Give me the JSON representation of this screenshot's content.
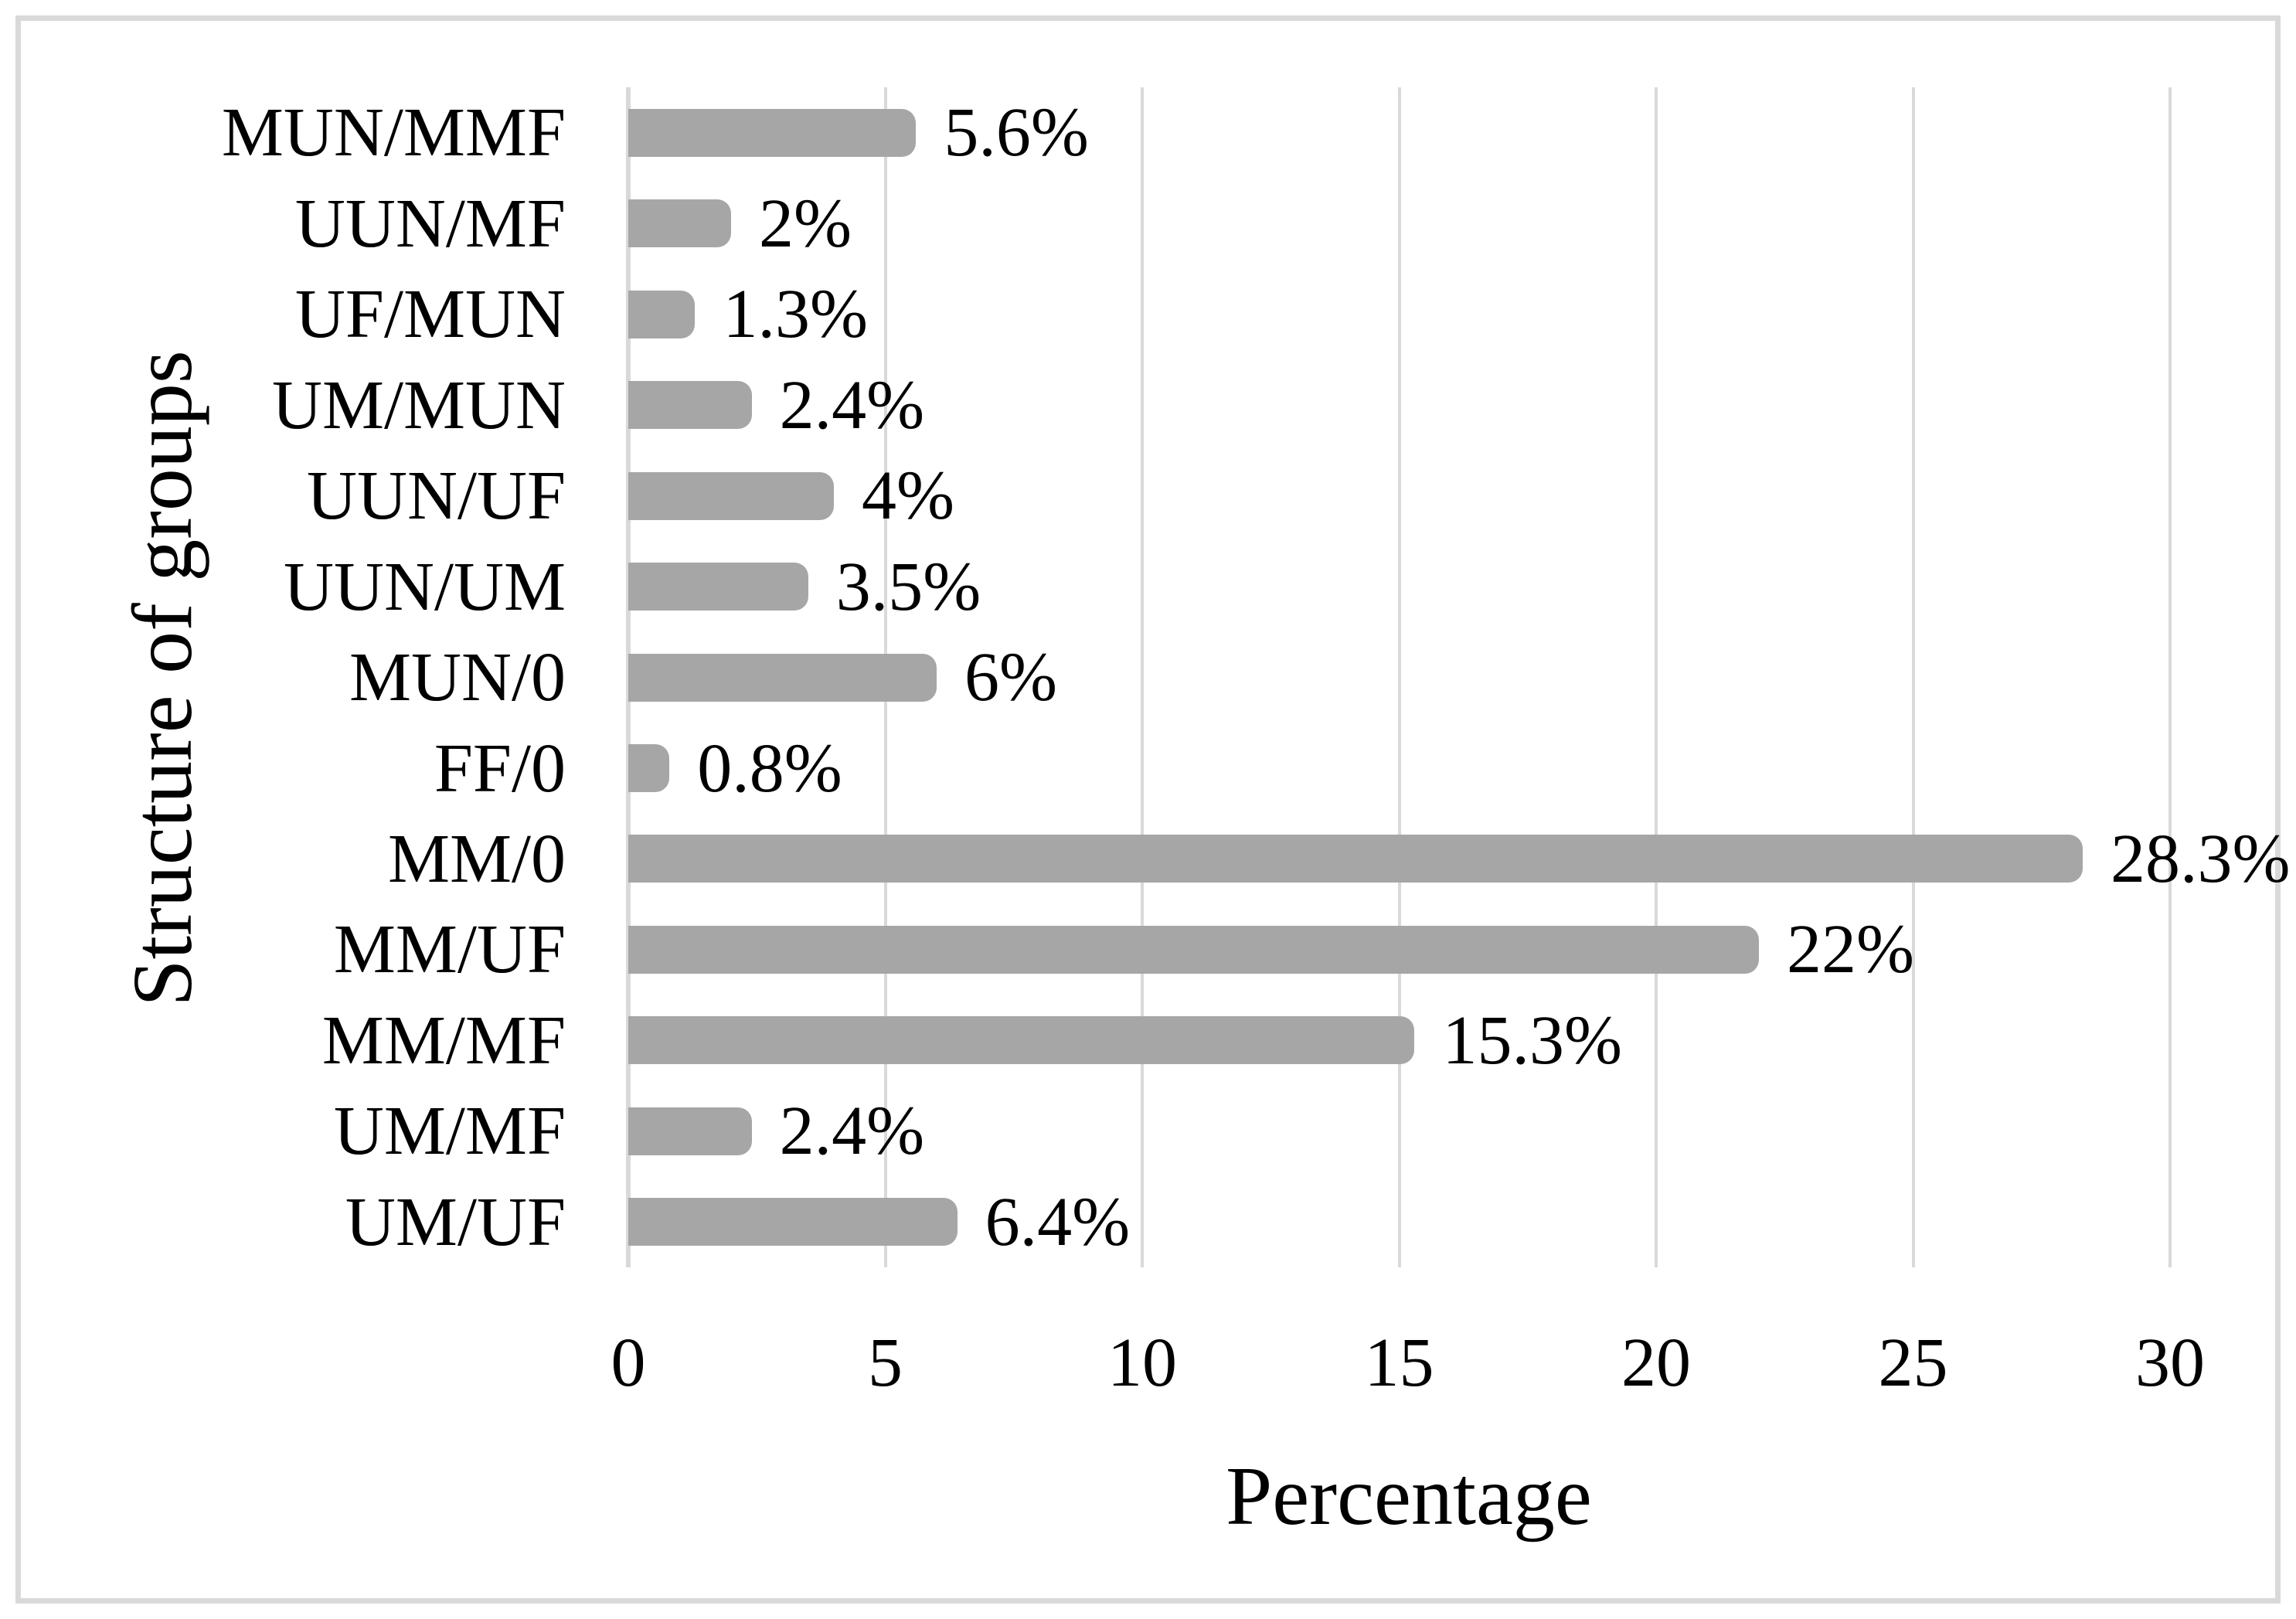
{
  "figure": {
    "x_axis_title": "Percentage",
    "y_axis_title": "Structure of groups"
  },
  "chart_data": {
    "type": "bar",
    "orientation": "horizontal",
    "title": "",
    "xlabel": "Percentage",
    "ylabel": "Structure of groups",
    "categories": [
      "MUN/MMF",
      "UUN/MF",
      "UF/MUN",
      "UM/MUN",
      "UUN/UF",
      "UUN/UM",
      "MUN/0",
      "FF/0",
      "MM/0",
      "MM/UF",
      "MM/MF",
      "UM/MF",
      "UM/UF"
    ],
    "values": [
      5.6,
      2,
      1.3,
      2.4,
      4,
      3.5,
      6,
      0.8,
      28.3,
      22,
      15.3,
      2.4,
      6.4
    ],
    "value_labels": [
      "5.6%",
      "2%",
      "1.3%",
      "2.4%",
      "4%",
      "3.5%",
      "6%",
      "0.8%",
      "28.3%",
      "22%",
      "15.3%",
      "2.4%",
      "6.4%"
    ],
    "xlim": [
      0,
      30
    ],
    "x_ticks": [
      0,
      5,
      10,
      15,
      20,
      25,
      30
    ],
    "grid": true,
    "legend": false,
    "bar_color": "#a6a6a6",
    "gridline_color": "#d9d9d9",
    "text_color": "#000000",
    "border_color": "#d9d9d9"
  }
}
